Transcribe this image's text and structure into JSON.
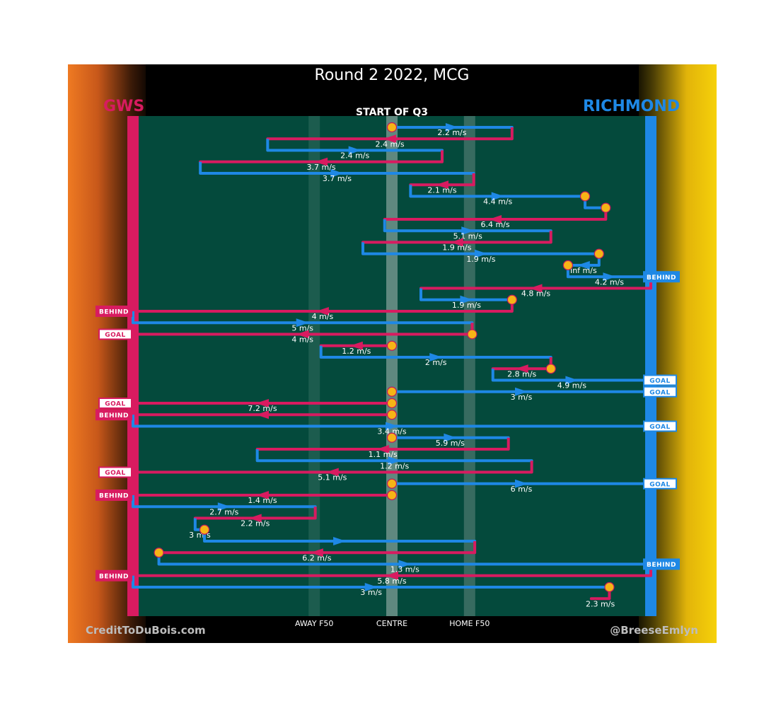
{
  "header": {
    "title": "Round 2 2022, MCG",
    "subtitle": "START OF Q3"
  },
  "teams": {
    "home_label": "GWS",
    "away_label": "RICHMOND",
    "home_color": "#d81b60",
    "away_color": "#1e88e5"
  },
  "colors": {
    "field": "#044a3c",
    "ball_marker": "#f6b416"
  },
  "footer": {
    "credit_left": "CreditToDuBois.com",
    "credit_right": "@BreeseEmlyn"
  },
  "chart_data": {
    "type": "line",
    "title": "Round 2 2022, MCG",
    "subtitle": "START OF Q3",
    "xlabel": "",
    "ylabel": "",
    "x_axis_labels": [
      {
        "label": "AWAY F50",
        "x": 0.35
      },
      {
        "label": "CENTRE",
        "x": 0.5
      },
      {
        "label": "HOME F50",
        "x": 0.65
      }
    ],
    "xlim": [
      0,
      1
    ],
    "grid": false,
    "legend": "none",
    "series": [
      {
        "team": "RIC",
        "start": 0.5,
        "end": 0.732,
        "speed": "2.2 m/s",
        "start_marker": true
      },
      {
        "team": "GWS",
        "start": 0.732,
        "end": 0.26,
        "speed": "2.4 m/s"
      },
      {
        "team": "RIC",
        "start": 0.26,
        "end": 0.597,
        "speed": "2.4 m/s"
      },
      {
        "team": "GWS",
        "start": 0.597,
        "end": 0.13,
        "speed": "3.7 m/s"
      },
      {
        "team": "RIC",
        "start": 0.13,
        "end": 0.658,
        "speed": "3.7 m/s"
      },
      {
        "team": "GWS",
        "start": 0.658,
        "end": 0.536,
        "speed": "2.1 m/s"
      },
      {
        "team": "RIC",
        "start": 0.536,
        "end": 0.873,
        "speed": "4.4 m/s",
        "end_marker": true
      },
      {
        "team": "RIC",
        "start": 0.873,
        "end": 0.913,
        "speed": "",
        "end_marker": true
      },
      {
        "team": "GWS",
        "start": 0.913,
        "end": 0.486,
        "speed": "6.4 m/s"
      },
      {
        "team": "RIC",
        "start": 0.486,
        "end": 0.807,
        "speed": "5.1 m/s"
      },
      {
        "team": "GWS",
        "start": 0.807,
        "end": 0.444,
        "speed": "1.9 m/s"
      },
      {
        "team": "RIC",
        "start": 0.444,
        "end": 0.9,
        "speed": "1.9 m/s",
        "end_marker": true
      },
      {
        "team": "RIC",
        "start": 0.9,
        "end": 0.84,
        "speed": "Inf m/s",
        "end_marker": true
      },
      {
        "team": "RIC",
        "start": 0.84,
        "end": 1.0,
        "speed": "4.2 m/s",
        "outcome": "BEHIND"
      },
      {
        "team": "GWS",
        "start": 1.0,
        "end": 0.556,
        "speed": "4.8 m/s"
      },
      {
        "team": "RIC",
        "start": 0.556,
        "end": 0.732,
        "speed": "1.9 m/s",
        "end_marker": true
      },
      {
        "team": "GWS",
        "start": 0.732,
        "end": 0.0,
        "speed": "4 m/s",
        "outcome": "BEHIND"
      },
      {
        "team": "RIC",
        "start": 0.0,
        "end": 0.655,
        "speed": "5 m/s"
      },
      {
        "team": "GWS",
        "start": 0.655,
        "end": 0.0,
        "speed": "4 m/s",
        "outcome": "GOAL",
        "start_marker": true
      },
      {
        "team": "GWS",
        "start": 0.5,
        "end": 0.363,
        "speed": "1.2 m/s",
        "start_marker": true
      },
      {
        "team": "RIC",
        "start": 0.363,
        "end": 0.807,
        "speed": "2 m/s"
      },
      {
        "team": "GWS",
        "start": 0.807,
        "end": 0.695,
        "speed": "2.8 m/s",
        "start_marker": true
      },
      {
        "team": "RIC",
        "start": 0.695,
        "end": 1.0,
        "speed": "4.9 m/s",
        "outcome": "GOAL"
      },
      {
        "team": "RIC",
        "start": 0.5,
        "end": 1.0,
        "speed": "3 m/s",
        "outcome": "GOAL",
        "start_marker": true
      },
      {
        "team": "GWS",
        "start": 0.5,
        "end": 0.0,
        "speed": "7.2 m/s",
        "outcome": "GOAL",
        "start_marker": true
      },
      {
        "team": "GWS",
        "start": 0.5,
        "end": 0.0,
        "speed": "",
        "outcome": "BEHIND",
        "start_marker": true
      },
      {
        "team": "RIC",
        "start": 0.0,
        "end": 1.0,
        "speed": "3.4 m/s",
        "outcome": "GOAL"
      },
      {
        "team": "RIC",
        "start": 0.5,
        "end": 0.725,
        "speed": "5.9 m/s",
        "start_marker": true
      },
      {
        "team": "GWS",
        "start": 0.725,
        "end": 0.24,
        "speed": "1.1 m/s"
      },
      {
        "team": "RIC",
        "start": 0.24,
        "end": 0.77,
        "speed": "1.2 m/s"
      },
      {
        "team": "GWS",
        "start": 0.77,
        "end": 0.0,
        "speed": "5.1 m/s",
        "outcome": "GOAL"
      },
      {
        "team": "RIC",
        "start": 0.5,
        "end": 1.0,
        "speed": "6 m/s",
        "outcome": "GOAL",
        "start_marker": true
      },
      {
        "team": "GWS",
        "start": 0.5,
        "end": 0.0,
        "speed": "1.4 m/s",
        "outcome": "BEHIND",
        "start_marker": true
      },
      {
        "team": "RIC",
        "start": 0.0,
        "end": 0.352,
        "speed": "2.7 m/s"
      },
      {
        "team": "GWS",
        "start": 0.352,
        "end": 0.12,
        "speed": "2.2 m/s"
      },
      {
        "team": "RIC",
        "start": 0.12,
        "end": 0.138,
        "speed": "3 m/s",
        "end_marker": true
      },
      {
        "team": "RIC",
        "start": 0.138,
        "end": 0.66,
        "speed": ""
      },
      {
        "team": "GWS",
        "start": 0.66,
        "end": 0.05,
        "speed": "6.2 m/s",
        "end_marker": true
      },
      {
        "team": "RIC",
        "start": 0.05,
        "end": 1.0,
        "speed": "1.3 m/s",
        "outcome": "BEHIND"
      },
      {
        "team": "GWS",
        "start": 1.0,
        "end": 0.0,
        "speed": "5.8 m/s",
        "outcome": "BEHIND"
      },
      {
        "team": "RIC",
        "start": 0.0,
        "end": 0.92,
        "speed": "3 m/s",
        "end_marker": true
      },
      {
        "team": "GWS",
        "start": 0.92,
        "end": 0.885,
        "speed": "2.3 m/s"
      }
    ]
  }
}
